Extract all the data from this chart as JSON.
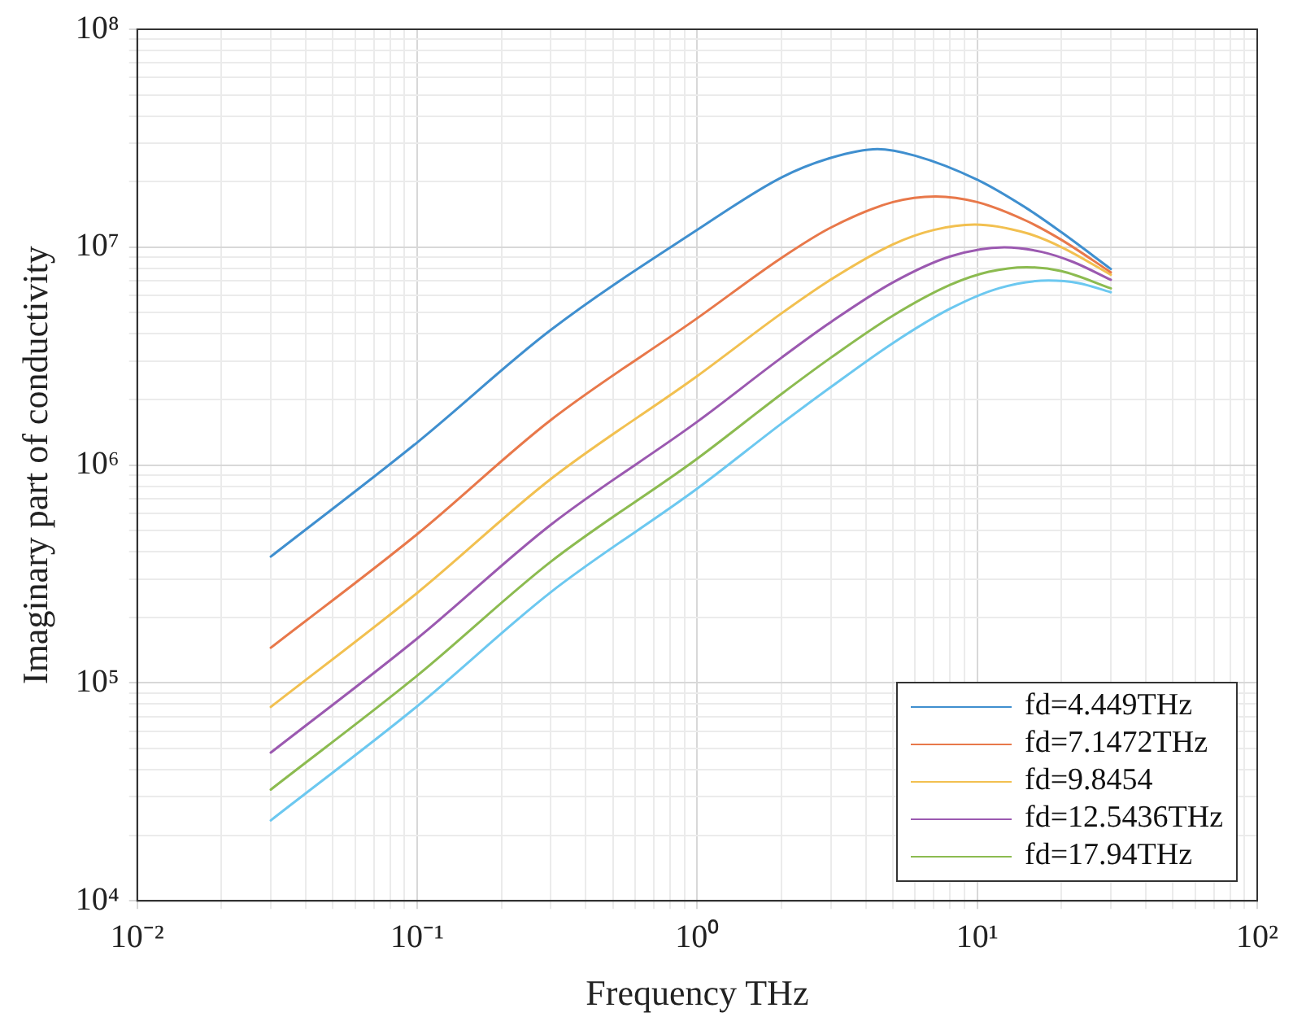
{
  "chart_data": {
    "type": "line",
    "xlabel": "Frequency THz",
    "ylabel": "Imaginary part of conductivity",
    "log": "xy",
    "grid": true,
    "legend": "bottom right",
    "marker": "none",
    "line_style": "solid",
    "xlim": [
      0.01,
      100
    ],
    "ylim": [
      10000,
      100000000
    ],
    "xticks": [
      {
        "value": 0.01,
        "label": "10⁻²"
      },
      {
        "value": 0.02,
        "label": null
      },
      {
        "value": 0.03,
        "label": null
      },
      {
        "value": 0.04,
        "label": null
      },
      {
        "value": 0.05,
        "label": null
      },
      {
        "value": 0.06,
        "label": null
      },
      {
        "value": 0.07,
        "label": null
      },
      {
        "value": 0.08,
        "label": null
      },
      {
        "value": 0.09,
        "label": null
      },
      {
        "value": 0.1,
        "label": "10⁻¹"
      },
      {
        "value": 0.2,
        "label": null
      },
      {
        "value": 0.3,
        "label": null
      },
      {
        "value": 0.4,
        "label": null
      },
      {
        "value": 0.5,
        "label": null
      },
      {
        "value": 0.6,
        "label": null
      },
      {
        "value": 0.7,
        "label": null
      },
      {
        "value": 0.8,
        "label": null
      },
      {
        "value": 0.9,
        "label": null
      },
      {
        "value": 1,
        "label": "10⁰"
      },
      {
        "value": 2,
        "label": null
      },
      {
        "value": 3,
        "label": null
      },
      {
        "value": 4,
        "label": null
      },
      {
        "value": 5,
        "label": null
      },
      {
        "value": 6,
        "label": null
      },
      {
        "value": 7,
        "label": null
      },
      {
        "value": 8,
        "label": null
      },
      {
        "value": 9,
        "label": null
      },
      {
        "value": 10,
        "label": "10¹"
      },
      {
        "value": 20,
        "label": null
      },
      {
        "value": 30,
        "label": null
      },
      {
        "value": 40,
        "label": null
      },
      {
        "value": 50,
        "label": null
      },
      {
        "value": 60,
        "label": null
      },
      {
        "value": 70,
        "label": null
      },
      {
        "value": 80,
        "label": null
      },
      {
        "value": 90,
        "label": null
      },
      {
        "value": 100,
        "label": "10²"
      }
    ],
    "yticks": [
      {
        "value": 10000,
        "label": "10⁴"
      },
      {
        "value": 20000,
        "label": null
      },
      {
        "value": 30000,
        "label": null
      },
      {
        "value": 40000,
        "label": null
      },
      {
        "value": 50000,
        "label": null
      },
      {
        "value": 60000,
        "label": null
      },
      {
        "value": 70000,
        "label": null
      },
      {
        "value": 80000,
        "label": null
      },
      {
        "value": 90000,
        "label": null
      },
      {
        "value": 100000,
        "label": "10⁵"
      },
      {
        "value": 200000,
        "label": null
      },
      {
        "value": 300000,
        "label": null
      },
      {
        "value": 400000,
        "label": null
      },
      {
        "value": 500000,
        "label": null
      },
      {
        "value": 600000,
        "label": null
      },
      {
        "value": 700000,
        "label": null
      },
      {
        "value": 800000,
        "label": null
      },
      {
        "value": 900000,
        "label": null
      },
      {
        "value": 1000000,
        "label": "10⁶"
      },
      {
        "value": 2000000,
        "label": null
      },
      {
        "value": 3000000,
        "label": null
      },
      {
        "value": 4000000,
        "label": null
      },
      {
        "value": 5000000,
        "label": null
      },
      {
        "value": 6000000,
        "label": null
      },
      {
        "value": 7000000,
        "label": null
      },
      {
        "value": 8000000,
        "label": null
      },
      {
        "value": 9000000,
        "label": null
      },
      {
        "value": 10000000,
        "label": "10⁷"
      },
      {
        "value": 20000000,
        "label": null
      },
      {
        "value": 30000000,
        "label": null
      },
      {
        "value": 40000000,
        "label": null
      },
      {
        "value": 50000000,
        "label": null
      },
      {
        "value": 60000000,
        "label": null
      },
      {
        "value": 70000000,
        "label": null
      },
      {
        "value": 80000000,
        "label": null
      },
      {
        "value": 90000000,
        "label": null
      },
      {
        "value": 100000000,
        "label": "10⁸"
      }
    ],
    "series": [
      {
        "name": "fd=4.449THz",
        "color": "#3f8fcf",
        "x": [
          0.03,
          0.1,
          0.3,
          1,
          2,
          3,
          4.4,
          6,
          10,
          15,
          20,
          30
        ],
        "values": [
          380000,
          1270000,
          4170000,
          12000000,
          20900000,
          25700000,
          28200000,
          26300000,
          20400000,
          15100000,
          11700000,
          7940000
        ]
      },
      {
        "name": "fd=7.1472THz",
        "color": "#e8784a",
        "x": [
          0.03,
          0.1,
          0.3,
          1,
          2,
          3,
          5,
          7.1,
          10,
          15,
          20,
          30
        ],
        "values": [
          145000,
          482000,
          1610000,
          4720000,
          8930000,
          12300000,
          16100000,
          17100000,
          16100000,
          13200000,
          10800000,
          7670000
        ]
      },
      {
        "name": "fd=9.8454",
        "color": "#f2c050",
        "x": [
          0.03,
          0.1,
          0.3,
          1,
          2,
          3,
          5,
          7,
          9.8,
          15,
          20,
          30
        ],
        "values": [
          77600,
          259000,
          863000,
          2560000,
          4970000,
          7100000,
          10300000,
          12000000,
          12700000,
          11600000,
          10000000,
          7480000
        ]
      },
      {
        "name": "fd=12.5436THz",
        "color": "#9b59b0",
        "x": [
          0.03,
          0.1,
          0.3,
          1,
          2,
          3,
          5,
          8,
          12.5,
          17,
          22,
          30
        ],
        "values": [
          47900,
          160000,
          532000,
          1580000,
          3110000,
          4530000,
          6890000,
          9060000,
          9980000,
          9510000,
          8550000,
          7080000
        ]
      },
      {
        "name": "fd=17.94THz",
        "color": "#8cbb50",
        "x": [
          0.03,
          0.1,
          0.3,
          1,
          2,
          3,
          5,
          8,
          11,
          15,
          20,
          30
        ],
        "values": [
          32400,
          108000,
          360000,
          1070000,
          2120000,
          3110000,
          4850000,
          6710000,
          7710000,
          8090000,
          7760000,
          6470000
        ]
      },
      {
        "color": "#6cc8f0",
        "x": [
          0.03,
          0.1,
          0.3,
          1,
          2,
          3,
          5,
          8,
          12,
          18,
          23,
          30
        ],
        "values": [
          23400,
          78200,
          261000,
          780000,
          1550000,
          2280000,
          3630000,
          5220000,
          6490000,
          7030000,
          6840000,
          6210000
        ]
      }
    ]
  }
}
